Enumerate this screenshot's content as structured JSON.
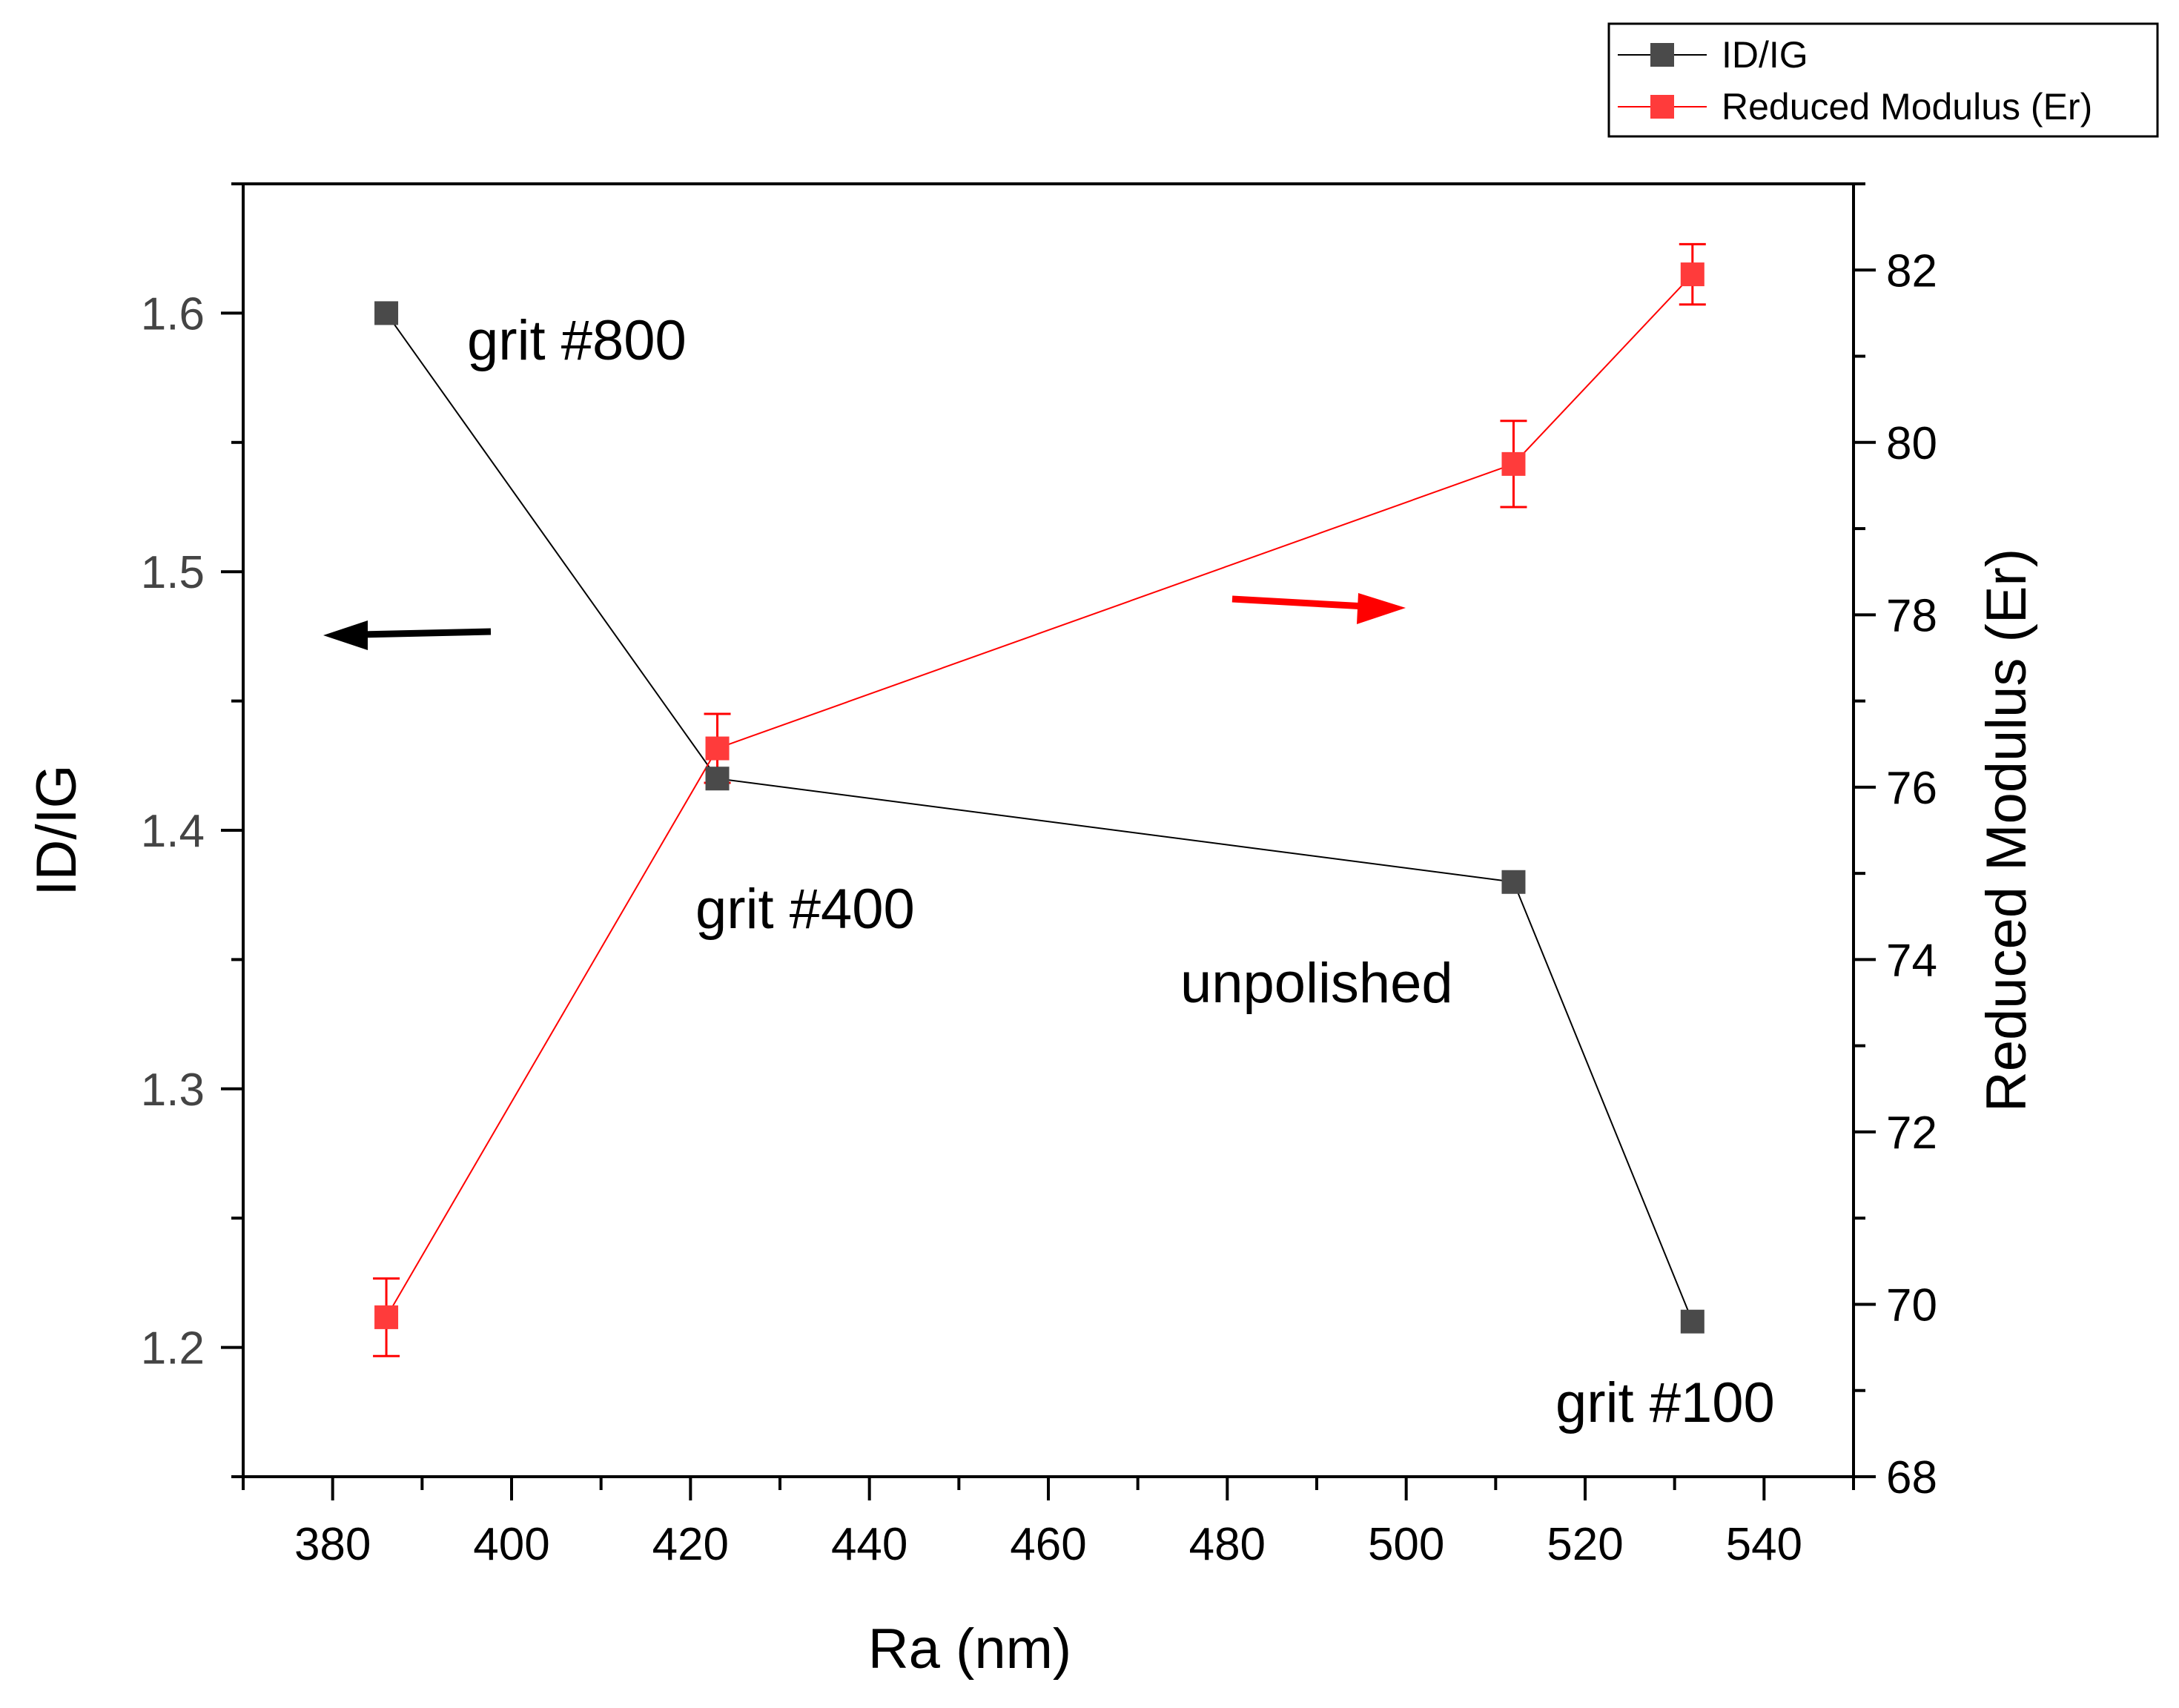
{
  "chart_data": {
    "type": "line",
    "title": "",
    "xlabel": "Ra (nm)",
    "ylabel_left": "ID/IG",
    "ylabel_right": "Reduced Modulus (Er)",
    "xlim": [
      370,
      550
    ],
    "ylim_left": [
      1.15,
      1.65
    ],
    "ylim_right": [
      68,
      83
    ],
    "x_ticks": [
      380,
      400,
      420,
      440,
      460,
      480,
      500,
      520,
      540
    ],
    "y_left_ticks": [
      1.2,
      1.3,
      1.4,
      1.5,
      1.6
    ],
    "y_right_ticks": [
      68,
      70,
      72,
      74,
      76,
      78,
      80,
      82
    ],
    "grid": false,
    "legend_position": "top-right, outside plot",
    "series": [
      {
        "name": "ID/IG",
        "axis": "left",
        "color": "#4a4a4a",
        "line_color": "#000000",
        "marker": "square",
        "x": [
          386,
          423,
          512,
          532
        ],
        "y": [
          1.6,
          1.42,
          1.38,
          1.21
        ]
      },
      {
        "name": "Reduced Modulus (Er)",
        "axis": "right",
        "color": "#ff3b3b",
        "line_color": "#ff0000",
        "marker": "square",
        "x": [
          386,
          423,
          512,
          532
        ],
        "y": [
          69.85,
          76.45,
          79.75,
          81.95
        ],
        "error": [
          0.45,
          0.4,
          0.5,
          0.35
        ]
      }
    ],
    "annotations": [
      {
        "text": "grit #800",
        "x": 386,
        "y_left": 1.6
      },
      {
        "text": "grit #400",
        "x": 423,
        "y_left": 1.42
      },
      {
        "text": "unpolished",
        "x": 512,
        "y_left": 1.38
      },
      {
        "text": "grit #100",
        "x": 532,
        "y_left": 1.21
      }
    ],
    "arrows": [
      {
        "direction": "left",
        "color": "#000000",
        "refers_to": "ID/IG"
      },
      {
        "direction": "right",
        "color": "#ff0000",
        "refers_to": "Reduced Modulus (Er)"
      }
    ]
  }
}
